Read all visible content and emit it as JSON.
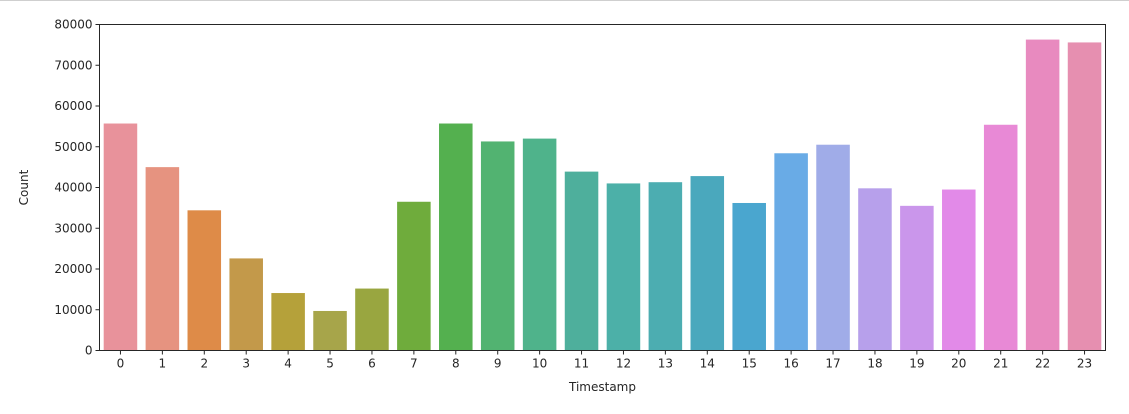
{
  "chart_data": {
    "type": "bar",
    "title": "",
    "xlabel": "Timestamp",
    "ylabel": "Count",
    "categories": [
      "0",
      "1",
      "2",
      "3",
      "4",
      "5",
      "6",
      "7",
      "8",
      "9",
      "10",
      "11",
      "12",
      "13",
      "14",
      "15",
      "16",
      "17",
      "18",
      "19",
      "20",
      "21",
      "22",
      "23"
    ],
    "values": [
      55700,
      45000,
      34400,
      22600,
      14100,
      9700,
      15200,
      36500,
      55700,
      51300,
      52000,
      43900,
      41000,
      41300,
      42800,
      36200,
      48400,
      50500,
      39800,
      35500,
      39500,
      55400,
      76300,
      75600
    ],
    "colors": [
      "#e8929b",
      "#e69380",
      "#de8b48",
      "#c3994a",
      "#b5a13a",
      "#a7a54a",
      "#99a640",
      "#6fac3c",
      "#54b04f",
      "#52b371",
      "#4fb38b",
      "#4eaf9c",
      "#4cb0a8",
      "#4cadb1",
      "#4aa8bd",
      "#4aa6cf",
      "#69abe6",
      "#a0ace8",
      "#b7a0eb",
      "#ca96eb",
      "#e28ae8",
      "#e889d6",
      "#e88abf",
      "#e68fb0"
    ],
    "yticks": [
      "0",
      "10000",
      "20000",
      "30000",
      "40000",
      "50000",
      "60000",
      "70000",
      "80000"
    ],
    "ylim": [
      0,
      80000
    ],
    "grid": false,
    "legend": false
  }
}
